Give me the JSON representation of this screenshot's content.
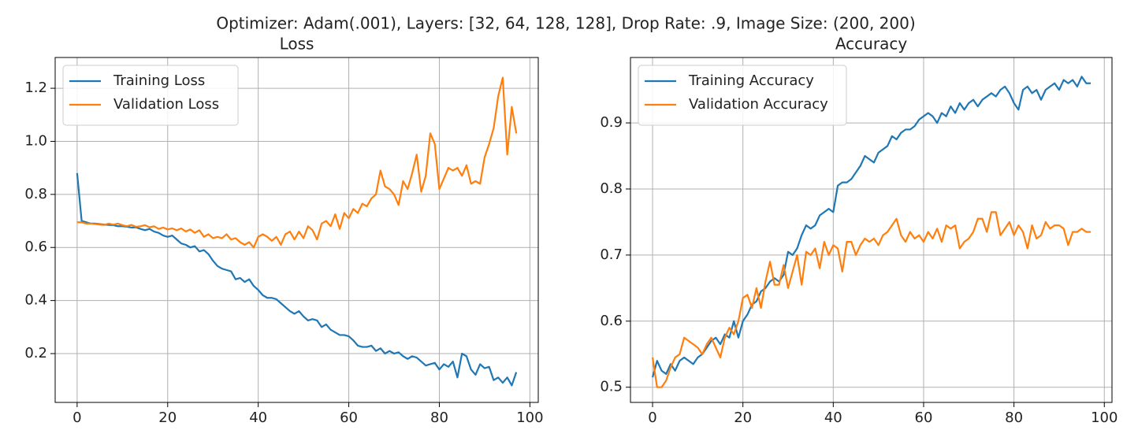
{
  "title": "Optimizer: Adam(.001), Layers: [32, 64, 128, 128], Drop Rate: .9, Image Size: (200, 200)",
  "chart_data": [
    {
      "type": "line",
      "title": "Loss",
      "grid": true,
      "legend": "upper left",
      "x": [
        0,
        1,
        2,
        3,
        4,
        5,
        6,
        7,
        8,
        9,
        10,
        11,
        12,
        13,
        14,
        15,
        16,
        17,
        18,
        19,
        20,
        21,
        22,
        23,
        24,
        25,
        26,
        27,
        28,
        29,
        30,
        31,
        32,
        33,
        34,
        35,
        36,
        37,
        38,
        39,
        40,
        41,
        42,
        43,
        44,
        45,
        46,
        47,
        48,
        49,
        50,
        51,
        52,
        53,
        54,
        55,
        56,
        57,
        58,
        59,
        60,
        61,
        62,
        63,
        64,
        65,
        66,
        67,
        68,
        69,
        70,
        71,
        72,
        73,
        74,
        75,
        76,
        77,
        78,
        79,
        80,
        81,
        82,
        83,
        84,
        85,
        86,
        87,
        88,
        89,
        90,
        91,
        92,
        93,
        94,
        95,
        96,
        97
      ],
      "xlim": [
        -4.85,
        101.85
      ],
      "xticks": [
        0,
        20,
        40,
        60,
        80,
        100
      ],
      "ylim": [
        0.016,
        1.316
      ],
      "yticks": [
        0.2,
        0.4,
        0.6,
        0.8,
        {
          "value": 1,
          "label": "1.0"
        },
        1.2
      ],
      "series": [
        {
          "name": "Training Loss",
          "color": "#1f77b4",
          "values": [
            0.88,
            0.7,
            0.695,
            0.69,
            0.69,
            0.688,
            0.686,
            0.685,
            0.684,
            0.68,
            0.68,
            0.678,
            0.675,
            0.676,
            0.67,
            0.665,
            0.67,
            0.66,
            0.655,
            0.645,
            0.64,
            0.645,
            0.63,
            0.615,
            0.61,
            0.6,
            0.605,
            0.585,
            0.59,
            0.575,
            0.55,
            0.53,
            0.52,
            0.515,
            0.51,
            0.48,
            0.485,
            0.47,
            0.48,
            0.455,
            0.44,
            0.42,
            0.41,
            0.41,
            0.405,
            0.39,
            0.375,
            0.36,
            0.35,
            0.36,
            0.34,
            0.325,
            0.33,
            0.325,
            0.3,
            0.31,
            0.29,
            0.28,
            0.27,
            0.27,
            0.265,
            0.25,
            0.23,
            0.225,
            0.225,
            0.23,
            0.21,
            0.22,
            0.2,
            0.21,
            0.2,
            0.205,
            0.19,
            0.18,
            0.19,
            0.185,
            0.17,
            0.155,
            0.16,
            0.165,
            0.14,
            0.16,
            0.15,
            0.17,
            0.11,
            0.2,
            0.19,
            0.14,
            0.12,
            0.16,
            0.145,
            0.15,
            0.1,
            0.11,
            0.09,
            0.11,
            0.08,
            0.13
          ]
        },
        {
          "name": "Validation Loss",
          "color": "#ff7f0e",
          "values": [
            0.695,
            0.695,
            0.69,
            0.69,
            0.688,
            0.686,
            0.685,
            0.69,
            0.686,
            0.69,
            0.684,
            0.68,
            0.685,
            0.678,
            0.68,
            0.684,
            0.676,
            0.68,
            0.67,
            0.675,
            0.668,
            0.672,
            0.665,
            0.672,
            0.66,
            0.668,
            0.655,
            0.665,
            0.64,
            0.65,
            0.635,
            0.64,
            0.635,
            0.65,
            0.63,
            0.635,
            0.62,
            0.61,
            0.62,
            0.6,
            0.64,
            0.65,
            0.64,
            0.625,
            0.64,
            0.61,
            0.65,
            0.66,
            0.63,
            0.66,
            0.635,
            0.68,
            0.665,
            0.63,
            0.69,
            0.7,
            0.68,
            0.725,
            0.67,
            0.73,
            0.71,
            0.745,
            0.73,
            0.765,
            0.755,
            0.785,
            0.8,
            0.89,
            0.83,
            0.82,
            0.8,
            0.76,
            0.85,
            0.82,
            0.88,
            0.95,
            0.81,
            0.87,
            1.03,
            0.99,
            0.82,
            0.86,
            0.9,
            0.89,
            0.9,
            0.87,
            0.91,
            0.84,
            0.85,
            0.84,
            0.94,
            0.99,
            1.05,
            1.17,
            1.24,
            0.95,
            1.13,
            1.03
          ]
        }
      ]
    },
    {
      "type": "line",
      "title": "Accuracy",
      "grid": true,
      "legend": "upper left",
      "x": [
        0,
        1,
        2,
        3,
        4,
        5,
        6,
        7,
        8,
        9,
        10,
        11,
        12,
        13,
        14,
        15,
        16,
        17,
        18,
        19,
        20,
        21,
        22,
        23,
        24,
        25,
        26,
        27,
        28,
        29,
        30,
        31,
        32,
        33,
        34,
        35,
        36,
        37,
        38,
        39,
        40,
        41,
        42,
        43,
        44,
        45,
        46,
        47,
        48,
        49,
        50,
        51,
        52,
        53,
        54,
        55,
        56,
        57,
        58,
        59,
        60,
        61,
        62,
        63,
        64,
        65,
        66,
        67,
        68,
        69,
        70,
        71,
        72,
        73,
        74,
        75,
        76,
        77,
        78,
        79,
        80,
        81,
        82,
        83,
        84,
        85,
        86,
        87,
        88,
        89,
        90,
        91,
        92,
        93,
        94,
        95,
        96,
        97
      ],
      "xlim": [
        -4.89,
        101.7
      ],
      "xticks": [
        0,
        20,
        40,
        60,
        80,
        100
      ],
      "ylim": [
        0.477,
        0.999
      ],
      "yticks": [
        0.5,
        0.6,
        0.7,
        0.8,
        0.9
      ],
      "series": [
        {
          "name": "Training Accuracy",
          "color": "#1f77b4",
          "values": [
            0.515,
            0.54,
            0.525,
            0.52,
            0.535,
            0.525,
            0.54,
            0.545,
            0.54,
            0.535,
            0.545,
            0.55,
            0.56,
            0.57,
            0.575,
            0.565,
            0.58,
            0.575,
            0.6,
            0.575,
            0.6,
            0.61,
            0.625,
            0.63,
            0.645,
            0.65,
            0.66,
            0.665,
            0.66,
            0.67,
            0.705,
            0.7,
            0.71,
            0.73,
            0.745,
            0.74,
            0.745,
            0.76,
            0.765,
            0.77,
            0.765,
            0.805,
            0.81,
            0.81,
            0.815,
            0.825,
            0.835,
            0.85,
            0.845,
            0.84,
            0.855,
            0.86,
            0.865,
            0.88,
            0.875,
            0.885,
            0.89,
            0.89,
            0.895,
            0.905,
            0.91,
            0.915,
            0.91,
            0.9,
            0.915,
            0.91,
            0.925,
            0.915,
            0.93,
            0.92,
            0.93,
            0.935,
            0.925,
            0.935,
            0.94,
            0.945,
            0.94,
            0.95,
            0.955,
            0.945,
            0.93,
            0.92,
            0.95,
            0.955,
            0.945,
            0.95,
            0.935,
            0.95,
            0.955,
            0.96,
            0.95,
            0.965,
            0.96,
            0.965,
            0.955,
            0.97,
            0.96,
            0.96
          ]
        },
        {
          "name": "Validation Accuracy",
          "color": "#ff7f0e",
          "values": [
            0.545,
            0.5,
            0.5,
            0.51,
            0.53,
            0.545,
            0.55,
            0.575,
            0.57,
            0.565,
            0.56,
            0.55,
            0.565,
            0.575,
            0.56,
            0.545,
            0.575,
            0.59,
            0.58,
            0.6,
            0.635,
            0.64,
            0.62,
            0.65,
            0.62,
            0.66,
            0.69,
            0.655,
            0.655,
            0.685,
            0.65,
            0.675,
            0.7,
            0.655,
            0.705,
            0.7,
            0.71,
            0.68,
            0.72,
            0.7,
            0.715,
            0.71,
            0.675,
            0.72,
            0.72,
            0.7,
            0.715,
            0.725,
            0.72,
            0.725,
            0.715,
            0.73,
            0.735,
            0.745,
            0.755,
            0.73,
            0.72,
            0.735,
            0.725,
            0.73,
            0.72,
            0.735,
            0.725,
            0.74,
            0.72,
            0.745,
            0.74,
            0.745,
            0.71,
            0.72,
            0.725,
            0.735,
            0.755,
            0.755,
            0.735,
            0.765,
            0.765,
            0.73,
            0.74,
            0.75,
            0.73,
            0.745,
            0.735,
            0.71,
            0.745,
            0.725,
            0.73,
            0.75,
            0.74,
            0.745,
            0.745,
            0.74,
            0.715,
            0.735,
            0.735,
            0.74,
            0.735,
            0.735
          ]
        }
      ]
    }
  ]
}
